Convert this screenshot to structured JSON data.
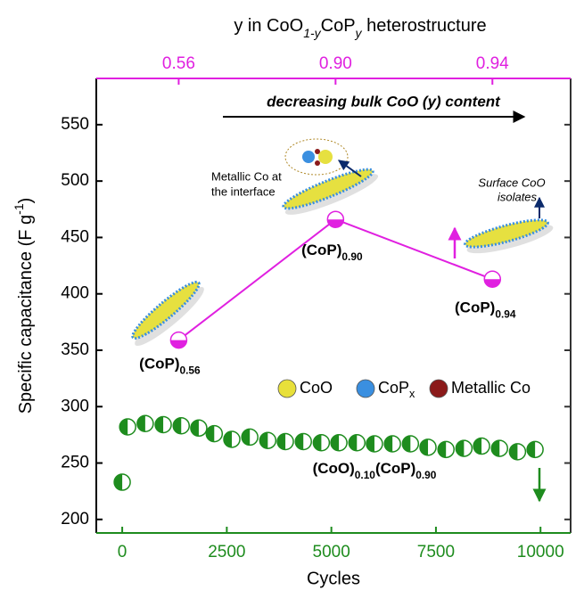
{
  "chart_data": {
    "type": "scatter",
    "x2label": [
      "y in CoO",
      "1-y",
      "CoP",
      "y",
      " heterostructure"
    ],
    "xlabel": "Cycles",
    "ylabel": [
      "Specific capacitance (F g",
      "-1",
      ")"
    ],
    "xlim": [
      -620,
      10720
    ],
    "ylim": [
      188,
      591
    ],
    "xticks": [
      0,
      2500,
      5000,
      7500,
      10000
    ],
    "yticks": [
      200,
      250,
      300,
      350,
      400,
      450,
      500,
      550
    ],
    "series": [
      {
        "color": "#e020e0",
        "line": true,
        "x": [
          1350,
          5100,
          8850
        ],
        "values": [
          359,
          466,
          413
        ],
        "x2labels": [
          "0.56",
          "0.90",
          "0.94"
        ],
        "point_labels": [
          [
            "(CoP)",
            "0.56"
          ],
          [
            "(CoP)",
            "0.90"
          ],
          [
            "(CoP)",
            "0.94"
          ]
        ]
      },
      {
        "color": "#1e8c1e",
        "line": false,
        "x": [
          0,
          130,
          550,
          980,
          1410,
          1830,
          2200,
          2620,
          3050,
          3480,
          3900,
          4330,
          4760,
          5180,
          5610,
          6030,
          6460,
          6890,
          7310,
          7740,
          8170,
          8590,
          9020,
          9450,
          9870
        ],
        "values": [
          233,
          282,
          285,
          284,
          283,
          281,
          276,
          271,
          273,
          270,
          269,
          269,
          268,
          268,
          268,
          267,
          267,
          267,
          264,
          262,
          263,
          265,
          263,
          260,
          262
        ],
        "series_label": [
          "(CoO)",
          "0.10",
          "(CoP)",
          "0.90"
        ]
      }
    ],
    "legend": [
      {
        "name": [
          "CoO"
        ],
        "color": "#e8e03a"
      },
      {
        "name": [
          "CoP",
          "x"
        ],
        "color": "#3a8fe0"
      },
      {
        "name": [
          "Metallic Co"
        ],
        "color": "#8b1a1a"
      }
    ],
    "annotations": [
      "decreasing bulk CoO (y) content",
      "Metallic Co at",
      "the interface",
      "Surface CoO",
      "isolates"
    ]
  }
}
